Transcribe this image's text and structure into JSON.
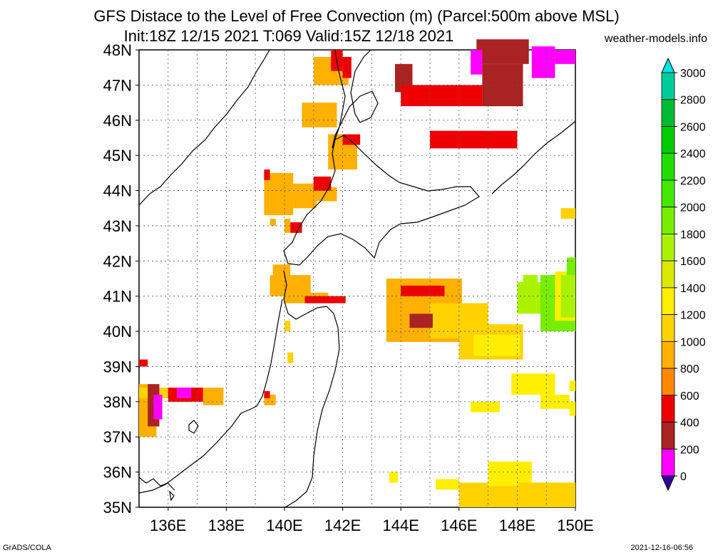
{
  "title": {
    "line1": "GFS Distace to the Level of Free Convection (m) (Parcel:500m above MSL)",
    "line2": "Init:18Z 12/15 2021 T:069 Valid:15Z 12/18 2021",
    "site": "weather-models.info"
  },
  "footer": {
    "left": "GrADS/COLA",
    "right": "2021-12-16-06:56"
  },
  "axes": {
    "lat_labels": [
      "48N",
      "47N",
      "46N",
      "45N",
      "44N",
      "43N",
      "42N",
      "41N",
      "40N",
      "39N",
      "38N",
      "37N",
      "36N",
      "35N"
    ],
    "lon_labels": [
      "136E",
      "138E",
      "140E",
      "142E",
      "144E",
      "146E",
      "148E",
      "150E"
    ]
  },
  "colorbar": {
    "labels": [
      "3000",
      "2800",
      "2600",
      "2400",
      "2200",
      "2000",
      "1800",
      "1600",
      "1400",
      "1200",
      "1000",
      "800",
      "600",
      "400",
      "200",
      "0"
    ],
    "colors": [
      "#00e5e5",
      "#00cc99",
      "#00bb33",
      "#00cc00",
      "#22dd00",
      "#44e800",
      "#77ee00",
      "#aaf200",
      "#dde800",
      "#ffee00",
      "#ffd200",
      "#ffb000",
      "#ff8800",
      "#ee0000",
      "#aa2222",
      "#ff00ff",
      "#330099"
    ]
  },
  "legend_colors": {
    "magenta": "#ff00ff",
    "brown": "#aa2222",
    "red": "#ee0000",
    "orange": "#ffb000",
    "amber": "#ffd200",
    "yellow": "#ffee00",
    "lime": "#aaf200",
    "green": "#77ee00"
  }
}
